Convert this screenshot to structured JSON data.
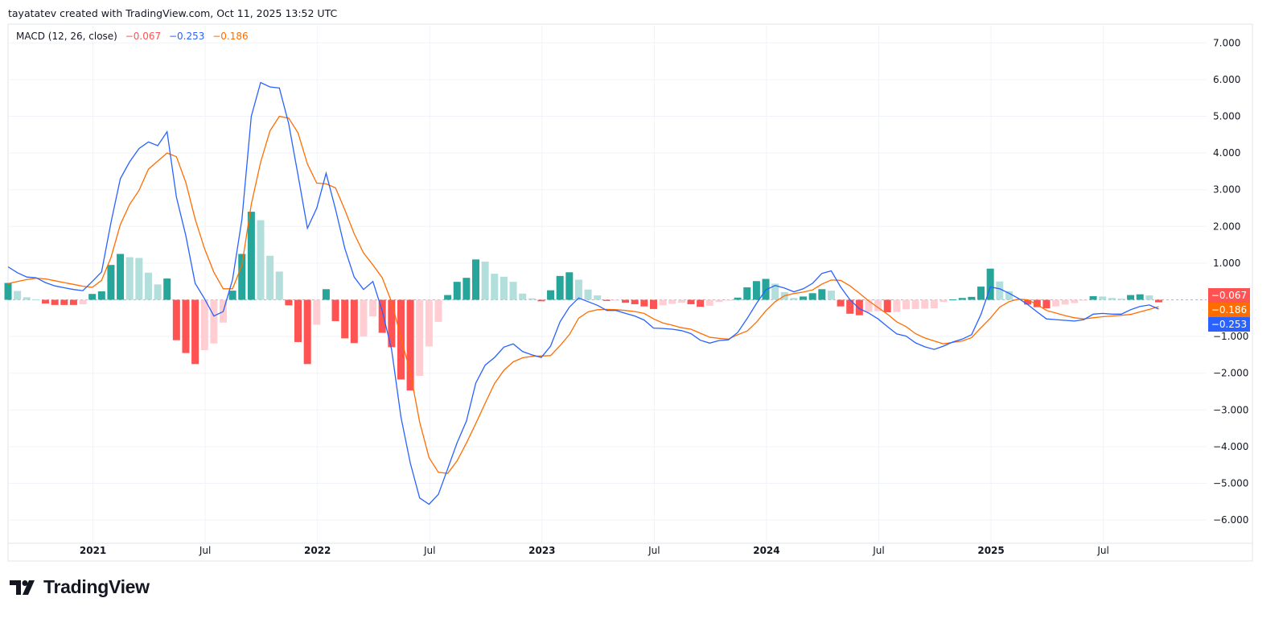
{
  "header": {
    "attribution": "tayatatev created with TradingView.com, Oct 11, 2025 13:52 UTC"
  },
  "legend": {
    "indicator": "MACD (12, 26, close)",
    "histogram_value": "−0.067",
    "macd_value": "−0.253",
    "signal_value": "−0.186"
  },
  "branding": {
    "logo_text": "TradingView"
  },
  "colors": {
    "macd": "#2962ff",
    "signal": "#ff6d00",
    "hist_pos_rising": "#26a69a",
    "hist_pos_falling": "#b2dfdb",
    "hist_neg_falling": "#ff5252",
    "hist_neg_rising": "#ffcdd2",
    "hist_label": "#ff5252"
  },
  "chart_data": {
    "type": "bar+line",
    "title": "MACD (12, 26, close)",
    "ylim": [
      -6.8,
      7.3
    ],
    "grid": true,
    "y_ticks": [
      "7.000",
      "6.000",
      "5.000",
      "4.000",
      "3.000",
      "2.000",
      "1.000",
      "−1.000",
      "−2.000",
      "−3.000",
      "−4.000",
      "−5.000",
      "−6.000"
    ],
    "y_tick_values": [
      7,
      6,
      5,
      4,
      3,
      2,
      1,
      -1,
      -2,
      -3,
      -4,
      -5,
      -6
    ],
    "x_ticks": [
      {
        "label": "2021",
        "date": "2021-01-01",
        "bold": true
      },
      {
        "label": "Jul",
        "date": "2021-07-01",
        "bold": false
      },
      {
        "label": "2022",
        "date": "2022-01-01",
        "bold": true
      },
      {
        "label": "Jul",
        "date": "2022-07-01",
        "bold": false
      },
      {
        "label": "2023",
        "date": "2023-01-01",
        "bold": true
      },
      {
        "label": "Jul",
        "date": "2023-07-01",
        "bold": false
      },
      {
        "label": "2024",
        "date": "2024-01-01",
        "bold": true
      },
      {
        "label": "Jul",
        "date": "2024-07-01",
        "bold": false
      },
      {
        "label": "2025",
        "date": "2025-01-01",
        "bold": true
      },
      {
        "label": "Jul",
        "date": "2025-07-01",
        "bold": false
      }
    ],
    "x_start": "2020-08-15",
    "x_step": "half-month",
    "last_values": {
      "histogram": "−0.067",
      "signal": "−0.186",
      "macd": "−0.253"
    },
    "macd": [
      0.9,
      0.74,
      0.62,
      0.6,
      0.47,
      0.38,
      0.33,
      0.28,
      0.25,
      0.5,
      0.76,
      2.1,
      3.3,
      3.76,
      4.12,
      4.3,
      4.2,
      4.58,
      2.8,
      1.75,
      0.45,
      0.03,
      -0.44,
      -0.32,
      0.55,
      2.2,
      5.0,
      5.92,
      5.8,
      5.77,
      4.8,
      3.4,
      1.95,
      2.5,
      3.45,
      2.47,
      1.4,
      0.62,
      0.28,
      0.5,
      -0.3,
      -1.35,
      -3.2,
      -4.45,
      -5.4,
      -5.57,
      -5.3,
      -4.6,
      -3.9,
      -3.3,
      -2.27,
      -1.78,
      -1.57,
      -1.29,
      -1.2,
      -1.41,
      -1.5,
      -1.57,
      -1.26,
      -0.6,
      -0.2,
      0.05,
      -0.05,
      -0.15,
      -0.29,
      -0.29,
      -0.37,
      -0.44,
      -0.55,
      -0.77,
      -0.78,
      -0.8,
      -0.84,
      -0.92,
      -1.1,
      -1.18,
      -1.11,
      -1.09,
      -0.89,
      -0.51,
      -0.1,
      0.27,
      0.39,
      0.32,
      0.22,
      0.3,
      0.45,
      0.72,
      0.79,
      0.35,
      0.0,
      -0.24,
      -0.36,
      -0.52,
      -0.73,
      -0.93,
      -0.99,
      -1.17,
      -1.28,
      -1.35,
      -1.26,
      -1.15,
      -1.07,
      -0.95,
      -0.4,
      0.35,
      0.3,
      0.18,
      0.04,
      -0.13,
      -0.33,
      -0.52,
      -0.54,
      -0.56,
      -0.58,
      -0.54,
      -0.39,
      -0.37,
      -0.39,
      -0.39,
      -0.27,
      -0.18,
      -0.14,
      -0.253
    ],
    "signal": [
      0.44,
      0.5,
      0.55,
      0.59,
      0.57,
      0.52,
      0.47,
      0.42,
      0.37,
      0.34,
      0.53,
      1.15,
      2.05,
      2.6,
      2.98,
      3.56,
      3.78,
      4.0,
      3.9,
      3.2,
      2.2,
      1.4,
      0.75,
      0.3,
      0.3,
      0.95,
      2.6,
      3.75,
      4.6,
      5.0,
      4.95,
      4.55,
      3.7,
      3.18,
      3.16,
      3.05,
      2.45,
      1.8,
      1.28,
      0.95,
      0.6,
      -0.06,
      -1.03,
      -1.98,
      -3.33,
      -4.3,
      -4.7,
      -4.73,
      -4.39,
      -3.9,
      -3.37,
      -2.82,
      -2.28,
      -1.92,
      -1.69,
      -1.58,
      -1.54,
      -1.53,
      -1.52,
      -1.25,
      -0.95,
      -0.5,
      -0.33,
      -0.27,
      -0.26,
      -0.27,
      -0.29,
      -0.32,
      -0.37,
      -0.52,
      -0.63,
      -0.69,
      -0.76,
      -0.8,
      -0.91,
      -1.02,
      -1.05,
      -1.07,
      -0.95,
      -0.85,
      -0.61,
      -0.3,
      -0.05,
      0.11,
      0.17,
      0.21,
      0.27,
      0.43,
      0.54,
      0.53,
      0.38,
      0.18,
      -0.03,
      -0.21,
      -0.39,
      -0.6,
      -0.73,
      -0.92,
      -1.04,
      -1.12,
      -1.2,
      -1.16,
      -1.12,
      -1.03,
      -0.76,
      -0.5,
      -0.2,
      -0.05,
      0.02,
      0.0,
      -0.13,
      -0.29,
      -0.36,
      -0.43,
      -0.49,
      -0.52,
      -0.49,
      -0.46,
      -0.44,
      -0.42,
      -0.4,
      -0.33,
      -0.26,
      -0.186
    ],
    "histogram": [
      0.46,
      0.24,
      0.07,
      0.01,
      -0.1,
      -0.14,
      -0.14,
      -0.14,
      -0.12,
      0.16,
      0.23,
      0.95,
      1.25,
      1.16,
      1.14,
      0.74,
      0.42,
      0.58,
      -1.1,
      -1.45,
      -1.75,
      -1.37,
      -1.19,
      -0.62,
      0.25,
      1.25,
      2.4,
      2.17,
      1.2,
      0.77,
      -0.15,
      -1.15,
      -1.75,
      -0.68,
      0.29,
      -0.58,
      -1.05,
      -1.18,
      -1.0,
      -0.45,
      -0.9,
      -1.29,
      -2.17,
      -2.47,
      -2.07,
      -1.27,
      -0.6,
      0.13,
      0.49,
      0.6,
      1.1,
      1.04,
      0.71,
      0.63,
      0.49,
      0.17,
      0.04,
      -0.04,
      0.26,
      0.65,
      0.75,
      0.55,
      0.28,
      0.12,
      -0.03,
      -0.02,
      -0.08,
      -0.12,
      -0.18,
      -0.25,
      -0.15,
      -0.11,
      -0.08,
      -0.12,
      -0.19,
      -0.16,
      -0.06,
      -0.02,
      0.06,
      0.34,
      0.51,
      0.57,
      0.44,
      0.21,
      0.05,
      0.09,
      0.18,
      0.29,
      0.25,
      -0.18,
      -0.38,
      -0.42,
      -0.33,
      -0.31,
      -0.34,
      -0.33,
      -0.26,
      -0.25,
      -0.24,
      -0.23,
      -0.06,
      0.01,
      0.05,
      0.08,
      0.36,
      0.85,
      0.5,
      0.23,
      0.02,
      -0.13,
      -0.2,
      -0.23,
      -0.18,
      -0.13,
      -0.09,
      -0.02,
      0.1,
      0.09,
      0.05,
      0.03,
      0.13,
      0.15,
      0.12,
      -0.067
    ]
  }
}
